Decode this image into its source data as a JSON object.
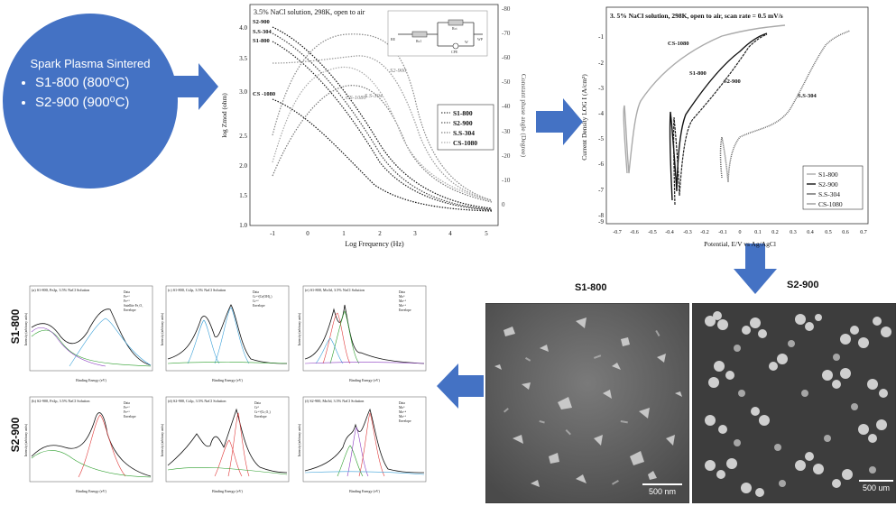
{
  "circle": {
    "title": "Spark Plasma Sintered",
    "items": [
      "S1-800 (800⁰C)",
      "S2-900 (900⁰C)"
    ]
  },
  "eis": {
    "title": "3.5% NaCl solution, 298K, open to air",
    "xlabel": "Log Frequency (Hz)",
    "ylabel_left": "log Zmod (ohm)",
    "ylabel_right": "Constant phase angle (Degree)",
    "x_ticks": [
      "-1",
      "0",
      "1",
      "2",
      "3",
      "4",
      "5"
    ],
    "y_ticks_left": [
      "1.0",
      "1.5",
      "2.0",
      "2.5",
      "3.0",
      "3.5",
      "4.0"
    ],
    "y_ticks_right": [
      "-80",
      "-70",
      "-60",
      "-50",
      "-40",
      "-30",
      "-20",
      "-10",
      "0"
    ],
    "legend": [
      "S1-800",
      "S2-900",
      "S.S-304",
      "CS-1080"
    ],
    "curve_labels": {
      "s2_left": "S2-900",
      "ss_left": "S.S-304",
      "s1_left": "S1-800",
      "cs_left": "CS -1080",
      "s2_phase": "S2-900",
      "ss_phase": "S.S-304",
      "cs_phase": "CS-1080"
    },
    "circuit_labels": {
      "re": "RE",
      "wp": "WP",
      "rs": "Rs1",
      "rct": "Rct",
      "cpe": "CPE",
      "w": "W"
    }
  },
  "pol": {
    "title": "3. 5% NaCl solution, 298K, open to air, scan rate = 0.5 mV/s",
    "xlabel": "Potential, E/V vs Ag/AgCl",
    "ylabel": "Current Density LOG I (A/cm²)",
    "x_ticks": [
      "-0.7",
      "-0.6",
      "-0.5",
      "-0.4",
      "-0.3",
      "-0.2",
      "-0.1",
      "0",
      "0.1",
      "0.2",
      "0.3",
      "0.4",
      "0.5",
      "0.6",
      "0.7"
    ],
    "y_ticks": [
      "-1",
      "-2",
      "-3",
      "-4",
      "-5",
      "-6",
      "-7",
      "-8",
      "-9"
    ],
    "legend": [
      "S1-800",
      "S2-900",
      "S.S-304",
      "CS-1080"
    ],
    "curve_labels": {
      "cs": "CS-1080",
      "s1": "S1-800",
      "s2": "S2-900",
      "ss": "S.S-304"
    }
  },
  "sem": {
    "left_title": "S1-800",
    "right_title": "S2-900",
    "left_scale": "500 nm",
    "right_scale": "500 um"
  },
  "xps": {
    "row_labels": [
      "S1-800",
      "S2-900"
    ],
    "xlabel": "Binding Energy (eV)",
    "ylabel": "Intensity (arbitrary units)",
    "panels": [
      {
        "title": "(a) S1-800, Fe2p, 3.5% NaCl Solution",
        "legend": [
          "Data",
          "Fe⁺²",
          "Fe⁺³",
          "Satellite Fe₂O₃",
          "Envelope"
        ]
      },
      {
        "title": "(c) S1-800, Cr2p, 3.5% NaCl Solution",
        "legend": [
          "Data",
          "Cr⁺³(Cr(OH)₃)",
          "Cr⁺⁶",
          "Envelope"
        ]
      },
      {
        "title": "(e) S1-800, Mo3d, 3.5% NaCl Solution",
        "legend": [
          "Data",
          "Mo⁰",
          "Mo⁺⁵",
          "Mo⁺⁶",
          "Envelope"
        ]
      },
      {
        "title": "(b) S2-900, Fe2p, 3.5% NaCl Solution",
        "legend": [
          "Data",
          "Fe⁺²",
          "Fe⁺³",
          "Envelope"
        ]
      },
      {
        "title": "(d) S2-900, Cr2p, 3.5% NaCl Solution",
        "legend": [
          "Data",
          "Cr⁰",
          "Cr⁺³(Cr₂O₃)",
          "Envelope"
        ]
      },
      {
        "title": "(f) S2-900, Mo3d, 3.5% NaCl Solution",
        "legend": [
          "Data",
          "Mo⁰",
          "Mo⁺⁴",
          "Mo⁺⁶",
          "Envelope"
        ]
      }
    ]
  },
  "colors": {
    "accent_blue": "#4472c4"
  }
}
